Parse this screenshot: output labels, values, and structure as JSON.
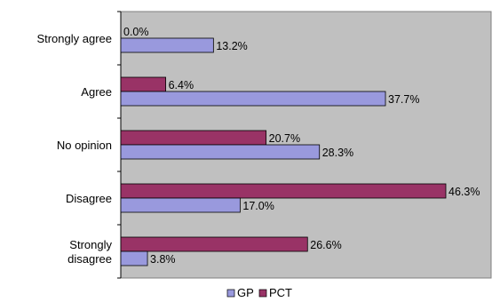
{
  "chart_data": {
    "type": "bar",
    "orientation": "horizontal",
    "categories": [
      "Strongly agree",
      "Agree",
      "No opinion",
      "Disagree",
      "Strongly disagree"
    ],
    "category_lines": [
      [
        "Strongly agree"
      ],
      [
        "Agree"
      ],
      [
        "No opinion"
      ],
      [
        "Disagree"
      ],
      [
        "Strongly",
        "disagree"
      ]
    ],
    "series": [
      {
        "name": "GP",
        "values": [
          13.2,
          37.7,
          28.3,
          17.0,
          3.8
        ],
        "labels": [
          "13.2%",
          "37.7%",
          "28.3%",
          "17.0%",
          "3.8%"
        ],
        "color": "#9999dd"
      },
      {
        "name": "PCT",
        "values": [
          0.0,
          6.4,
          20.7,
          46.3,
          26.6
        ],
        "labels": [
          "0.0%",
          "6.4%",
          "20.7%",
          "46.3%",
          "26.6%"
        ],
        "color": "#993366"
      }
    ],
    "xlim": [
      0,
      46.3
    ],
    "grid": false,
    "legend_position": "bottom",
    "plot_background": "#c0c0c0",
    "title": "",
    "xlabel": "",
    "ylabel": ""
  }
}
